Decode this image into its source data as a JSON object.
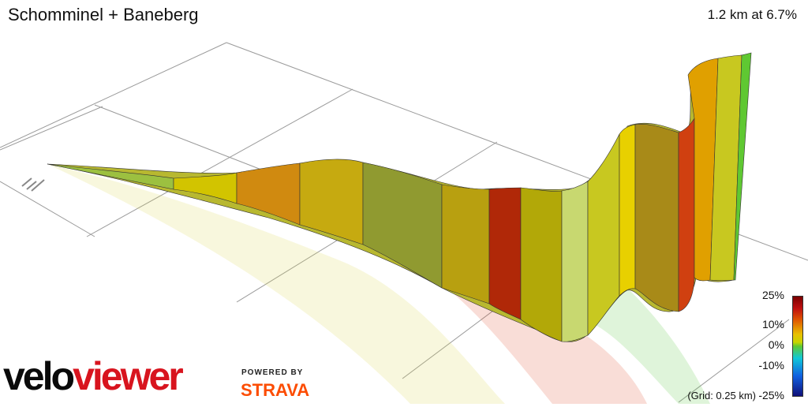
{
  "header": {
    "title": "Schomminel + Baneberg",
    "stats": "1.2 km at 6.7%"
  },
  "legend": {
    "ticks": [
      "25%",
      "10%",
      "0%",
      "-10%",
      "-25%"
    ],
    "grid_note": "(Grid: 0.25 km)"
  },
  "branding": {
    "logo_part1": "velo",
    "logo_part2": "viewer",
    "powered_by": "POWERED BY",
    "strava": "STRAVA"
  },
  "icons": {
    "compass": "north-arrow-icon"
  },
  "colors": {
    "logo_red": "#d8141e",
    "strava_orange": "#fc4c02"
  }
}
